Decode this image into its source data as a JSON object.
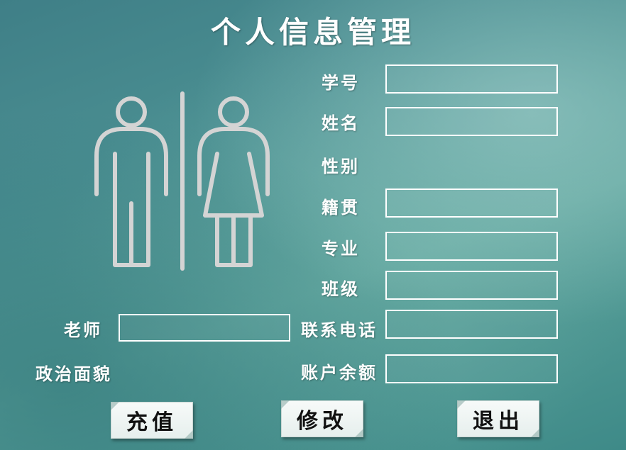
{
  "title": "个人信息管理",
  "icon": "restroom-male-female-icon",
  "fields": {
    "student_id": {
      "label": "学号",
      "value": ""
    },
    "name": {
      "label": "姓名",
      "value": ""
    },
    "gender": {
      "label": "性别"
    },
    "native_place": {
      "label": "籍贯",
      "value": ""
    },
    "major": {
      "label": "专业",
      "value": ""
    },
    "class": {
      "label": "班级",
      "value": ""
    },
    "teacher": {
      "label": "老师",
      "value": ""
    },
    "phone": {
      "label": "联系电话",
      "value": ""
    },
    "political_status": {
      "label": "政治面貌"
    },
    "balance": {
      "label": "账户余额",
      "value": ""
    }
  },
  "buttons": {
    "recharge": "充值",
    "modify": "修改",
    "exit": "退出"
  },
  "colors": {
    "background": "#4a8e91",
    "text": "#ffffff",
    "icon_stroke": "#d4d4d4",
    "button_face": "#f2f7f6"
  }
}
